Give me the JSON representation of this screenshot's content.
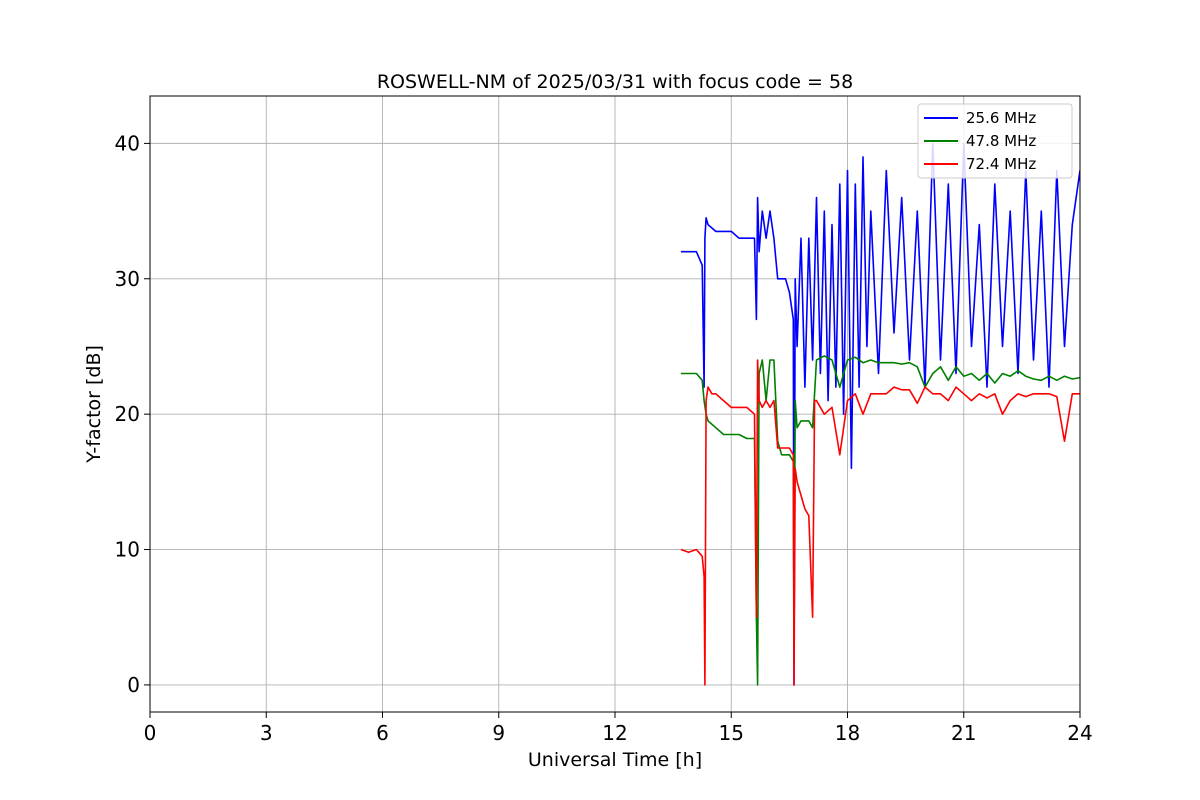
{
  "chart_data": {
    "type": "line",
    "title": "ROSWELL-NM of 2025/03/31 with focus code = 58",
    "xlabel": "Universal Time [h]",
    "ylabel": "Y-factor [dB]",
    "xlim": [
      0,
      24
    ],
    "ylim": [
      -2,
      43.5
    ],
    "xticks": [
      0,
      3,
      6,
      9,
      12,
      15,
      18,
      21,
      24
    ],
    "yticks": [
      0,
      10,
      20,
      30,
      40
    ],
    "grid": true,
    "legend_position": "top-right",
    "series": [
      {
        "name": "  25.6 MHz",
        "color": "#0000ff",
        "x": [
          13.7,
          13.9,
          14.1,
          14.25,
          14.3,
          14.32,
          14.35,
          14.4,
          14.6,
          14.8,
          15.0,
          15.2,
          15.4,
          15.6,
          15.65,
          15.68,
          15.72,
          15.8,
          15.9,
          16.0,
          16.1,
          16.2,
          16.3,
          16.4,
          16.5,
          16.6,
          16.62,
          16.65,
          16.7,
          16.8,
          16.9,
          17.0,
          17.1,
          17.2,
          17.3,
          17.4,
          17.5,
          17.6,
          17.7,
          17.8,
          17.9,
          18.0,
          18.1,
          18.2,
          18.3,
          18.4,
          18.5,
          18.6,
          18.8,
          19.0,
          19.2,
          19.4,
          19.6,
          19.8,
          20.0,
          20.2,
          20.4,
          20.6,
          20.8,
          21.0,
          21.2,
          21.4,
          21.6,
          21.8,
          22.0,
          22.2,
          22.4,
          22.6,
          22.8,
          23.0,
          23.2,
          23.4,
          23.6,
          23.8,
          24.0
        ],
        "y": [
          32,
          32,
          32,
          31,
          22,
          33,
          34.5,
          34,
          33.5,
          33.5,
          33.5,
          33,
          33,
          33,
          27,
          36,
          32,
          35,
          33,
          35,
          33,
          30,
          30,
          30,
          29,
          27,
          0,
          30,
          25,
          33,
          22,
          33,
          24,
          36,
          23,
          35,
          21,
          34,
          22,
          37,
          20,
          38,
          16,
          37,
          22,
          39,
          25,
          35,
          23,
          38,
          26,
          36,
          24,
          35,
          22,
          40,
          24,
          37,
          23,
          40,
          25,
          34,
          22,
          37,
          25,
          35,
          23,
          38,
          24,
          35,
          22,
          38,
          25,
          34,
          38
        ]
      },
      {
        "name": "  47.8 MHz",
        "color": "#008000",
        "x": [
          13.7,
          13.9,
          14.1,
          14.25,
          14.3,
          14.35,
          14.4,
          14.6,
          14.8,
          15.0,
          15.2,
          15.4,
          15.6,
          15.65,
          15.68,
          15.72,
          15.8,
          15.9,
          16.0,
          16.1,
          16.2,
          16.3,
          16.4,
          16.5,
          16.6,
          16.62,
          16.65,
          16.7,
          16.8,
          16.9,
          17.0,
          17.1,
          17.2,
          17.4,
          17.6,
          17.8,
          18.0,
          18.2,
          18.4,
          18.6,
          18.8,
          19.0,
          19.2,
          19.4,
          19.6,
          19.8,
          20.0,
          20.2,
          20.4,
          20.6,
          20.8,
          21.0,
          21.2,
          21.4,
          21.6,
          21.8,
          22.0,
          22.2,
          22.4,
          22.6,
          22.8,
          23.0,
          23.2,
          23.4,
          23.6,
          23.8,
          24.0
        ],
        "y": [
          23,
          23,
          23,
          22.5,
          21,
          20,
          19.5,
          19,
          18.5,
          18.5,
          18.5,
          18.2,
          18.2,
          5,
          0,
          23,
          24,
          21,
          24,
          24,
          18,
          17,
          17,
          17,
          16.5,
          3,
          21,
          19,
          19.5,
          19.5,
          19.5,
          19,
          24,
          24.3,
          24,
          22,
          24,
          24.2,
          23.8,
          24,
          23.8,
          23.8,
          23.8,
          23.7,
          23.8,
          23.5,
          22,
          23,
          23.5,
          22.5,
          23.5,
          22.8,
          23,
          22.5,
          23,
          22.3,
          23,
          22.8,
          23.2,
          22.8,
          22.6,
          22.5,
          22.8,
          22.5,
          22.8,
          22.6,
          22.7
        ]
      },
      {
        "name": "  72.4 MHz",
        "color": "#ff0000",
        "x": [
          13.7,
          13.9,
          14.1,
          14.25,
          14.3,
          14.32,
          14.35,
          14.4,
          14.5,
          14.6,
          14.8,
          15.0,
          15.2,
          15.4,
          15.6,
          15.65,
          15.68,
          15.72,
          15.8,
          15.9,
          16.0,
          16.1,
          16.2,
          16.3,
          16.4,
          16.5,
          16.6,
          16.62,
          16.65,
          16.7,
          16.8,
          16.9,
          17.0,
          17.1,
          17.15,
          17.2,
          17.4,
          17.6,
          17.8,
          18.0,
          18.2,
          18.4,
          18.6,
          18.8,
          19.0,
          19.2,
          19.4,
          19.6,
          19.8,
          20.0,
          20.2,
          20.4,
          20.6,
          20.8,
          21.0,
          21.2,
          21.4,
          21.6,
          21.8,
          22.0,
          22.2,
          22.4,
          22.6,
          22.8,
          23.0,
          23.2,
          23.4,
          23.6,
          23.8,
          24.0
        ],
        "y": [
          10,
          9.8,
          10,
          9.5,
          8,
          0,
          21,
          22,
          21.5,
          21.5,
          21,
          20.5,
          20.5,
          20.5,
          20,
          5,
          24,
          21,
          20.5,
          21,
          20.5,
          21,
          17.5,
          17.5,
          17.5,
          17.5,
          17,
          0,
          16,
          15,
          14,
          13,
          12.5,
          5,
          21,
          21,
          20,
          20.5,
          17,
          21,
          21.5,
          20,
          21.5,
          21.5,
          21.5,
          22,
          21.8,
          21.8,
          20.8,
          22,
          21.5,
          21.5,
          21,
          22,
          21.5,
          21,
          21.5,
          21.2,
          21.5,
          20,
          21,
          21.5,
          21.3,
          21.5,
          21.5,
          21.5,
          21.3,
          18,
          21.5,
          21.5
        ]
      }
    ]
  }
}
